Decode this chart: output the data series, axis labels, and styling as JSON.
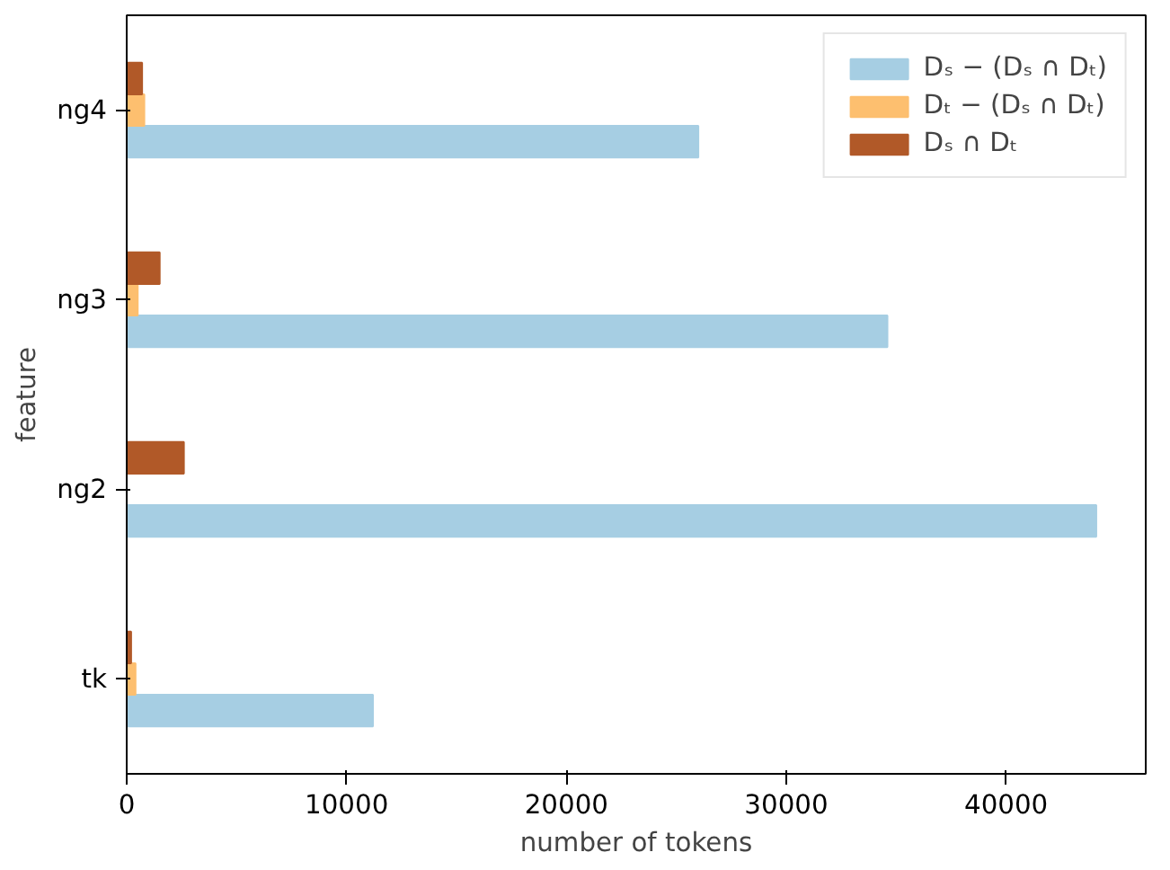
{
  "chart_data": {
    "type": "bar",
    "orientation": "horizontal",
    "categories": [
      "ng4",
      "ng3",
      "ng2",
      "tk"
    ],
    "xlabel": "number of tokens",
    "ylabel": "feature",
    "series": [
      {
        "name": "Dₛ − (Dₛ ∩ Dₜ)",
        "color": "#a6cee3",
        "values": [
          26000,
          34600,
          44100,
          11200
        ]
      },
      {
        "name": "Dₜ − (Dₛ ∩ Dₜ)",
        "color": "#fdbf6f",
        "values": [
          800,
          500,
          0,
          400
        ]
      },
      {
        "name": "Dₛ ∩ Dₜ",
        "color": "#b15928",
        "values": [
          700,
          1500,
          2600,
          200
        ]
      }
    ],
    "xlim": [
      0,
      46350
    ],
    "xticks": [
      0,
      10000,
      20000,
      30000,
      40000
    ],
    "grid": false,
    "legend": "top right"
  }
}
